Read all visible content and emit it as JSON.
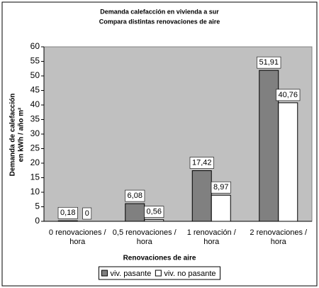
{
  "chart_data": {
    "type": "bar",
    "title": "Demanda calefacción en vivienda a sur",
    "subtitle": "Compara distintas renovaciones de aire",
    "x_label": "Renovaciones de aire",
    "y_label": [
      "Demanda de calefacción",
      "en kWh / año m²"
    ],
    "categories": [
      "0 renovaciones / hora",
      "0,5 renovaciones / hora",
      "1 renovación / hora",
      "2 renovaciones / hora"
    ],
    "series": [
      {
        "name": "viv. pasante",
        "color": "#808080",
        "values": [
          0.18,
          6.08,
          17.42,
          51.91
        ],
        "value_labels": [
          "0,18",
          "6,08",
          "17,42",
          "51,91"
        ]
      },
      {
        "name": "viv. no pasante",
        "color": "#ffffff",
        "values": [
          0,
          0.56,
          8.97,
          40.76
        ],
        "value_labels": [
          "0",
          "0,56",
          "8,97",
          "40,76"
        ]
      }
    ],
    "ylim": [
      0,
      60
    ],
    "yticks": [
      0,
      5,
      10,
      15,
      20,
      25,
      30,
      35,
      40,
      45,
      50,
      55,
      60
    ],
    "plot_background": "#c0c0c0",
    "legend": "bottom"
  }
}
